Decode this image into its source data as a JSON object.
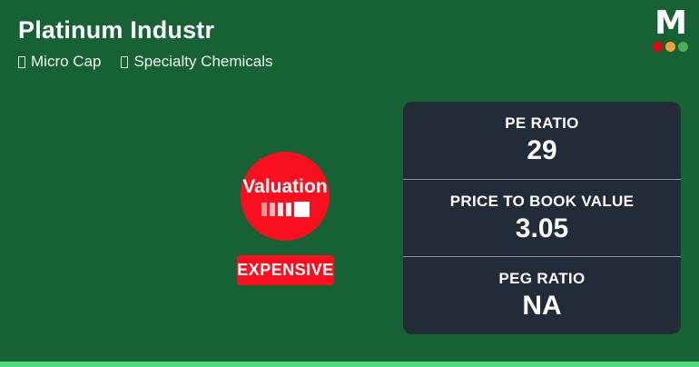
{
  "header": {
    "title": "Platinum Industr",
    "tags": [
      {
        "label": "Micro Cap"
      },
      {
        "label": "Specialty Chemicals"
      }
    ]
  },
  "logo": {
    "letter": "M",
    "dot_colors": [
      "#E30613",
      "#F0A139",
      "#4CAE50"
    ]
  },
  "valuation": {
    "label": "Valuation",
    "status": "EXPENSIVE",
    "scale_levels": 5,
    "active_level": 5
  },
  "metrics": [
    {
      "label": "PE RATIO",
      "value": "29"
    },
    {
      "label": "PRICE TO BOOK VALUE",
      "value": "3.05"
    },
    {
      "label": "PEG RATIO",
      "value": "NA"
    }
  ],
  "colors": {
    "background": "#176235",
    "panel": "#222B38",
    "divider": "#8B919B",
    "accent_red": "#FA0F1E",
    "bottom_strip": "#4ED97F"
  }
}
